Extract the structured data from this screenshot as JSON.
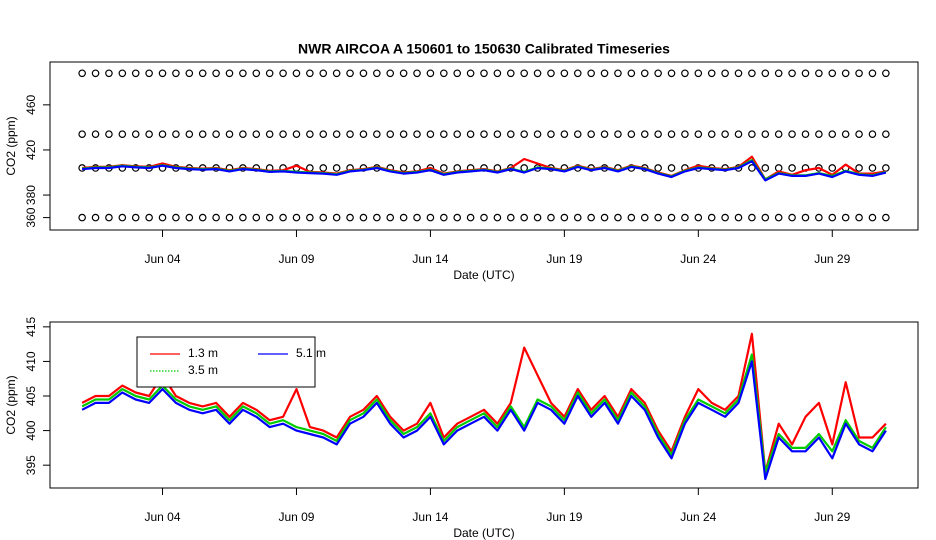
{
  "chart_data": [
    {
      "type": "line",
      "title": "NWR   AIRCOA  A   150601  to  150630   Calibrated Timeseries",
      "x_label": "Date (UTC)",
      "y_label": "CO2 (ppm)",
      "x": [
        1,
        1.5,
        2,
        2.5,
        3,
        3.5,
        4,
        4.5,
        5,
        5.5,
        6,
        6.5,
        7,
        7.5,
        8,
        8.5,
        9,
        9.5,
        10,
        10.5,
        11,
        11.5,
        12,
        12.5,
        13,
        13.5,
        14,
        14.5,
        15,
        15.5,
        16,
        16.5,
        17,
        17.5,
        18,
        18.5,
        19,
        19.5,
        20,
        20.5,
        21,
        21.5,
        22,
        22.5,
        23,
        23.5,
        24,
        24.5,
        25,
        25.5,
        26,
        26.5,
        27,
        27.5,
        28,
        28.5,
        29,
        29.5,
        30,
        30.5,
        31
      ],
      "xlim": [
        -0.2,
        32.2
      ],
      "xticks": [
        {
          "value": 4,
          "label": "Jun 04"
        },
        {
          "value": 9,
          "label": "Jun 09"
        },
        {
          "value": 14,
          "label": "Jun 14"
        },
        {
          "value": 19,
          "label": "Jun 19"
        },
        {
          "value": 24,
          "label": "Jun 24"
        },
        {
          "value": 29,
          "label": "Jun 29"
        }
      ],
      "ylim": [
        349,
        498
      ],
      "yticks": [
        360,
        380,
        420,
        460
      ],
      "series": [
        {
          "color": "#000000",
          "marker": "circle",
          "values": [
            488,
            488,
            488,
            488,
            488,
            488,
            488,
            488,
            488,
            488,
            488,
            488,
            488,
            488,
            488,
            488,
            488,
            488,
            488,
            488,
            488,
            488,
            488,
            488,
            488,
            488,
            488,
            488,
            488,
            488,
            488,
            488,
            488,
            488,
            488,
            488,
            488,
            488,
            488,
            488,
            488,
            488,
            488,
            488,
            488,
            488,
            488,
            488,
            488,
            488,
            488,
            488,
            488,
            488,
            488,
            488,
            488,
            488,
            488,
            488,
            488
          ]
        },
        {
          "color": "#000000",
          "marker": "circle",
          "values": [
            434,
            434,
            434,
            434,
            434,
            434,
            434,
            434,
            434,
            434,
            434,
            434,
            434,
            434,
            434,
            434,
            434,
            434,
            434,
            434,
            434,
            434,
            434,
            434,
            434,
            434,
            434,
            434,
            434,
            434,
            434,
            434,
            434,
            434,
            434,
            434,
            434,
            434,
            434,
            434,
            434,
            434,
            434,
            434,
            434,
            434,
            434,
            434,
            434,
            434,
            434,
            434,
            434,
            434,
            434,
            434,
            434,
            434,
            434,
            434,
            434
          ]
        },
        {
          "color": "#000000",
          "marker": "circle",
          "values": [
            404,
            404,
            404,
            404,
            404,
            404,
            404,
            404,
            404,
            404,
            404,
            404,
            404,
            404,
            404,
            404,
            404,
            404,
            404,
            404,
            404,
            404,
            404,
            404,
            404,
            404,
            404,
            404,
            404,
            404,
            404,
            404,
            404,
            404,
            404,
            404,
            404,
            404,
            404,
            404,
            404,
            404,
            404,
            404,
            404,
            404,
            404,
            404,
            404,
            404,
            404,
            404,
            404,
            404,
            404,
            404,
            404,
            404,
            404,
            404,
            404
          ]
        },
        {
          "color": "#000000",
          "marker": "circle",
          "values": [
            360,
            360,
            360,
            360,
            360,
            360,
            360,
            360,
            360,
            360,
            360,
            360,
            360,
            360,
            360,
            360,
            360,
            360,
            360,
            360,
            360,
            360,
            360,
            360,
            360,
            360,
            360,
            360,
            360,
            360,
            360,
            360,
            360,
            360,
            360,
            360,
            360,
            360,
            360,
            360,
            360,
            360,
            360,
            360,
            360,
            360,
            360,
            360,
            360,
            360,
            360,
            360,
            360,
            360,
            360,
            360,
            360,
            360,
            360,
            360,
            360
          ]
        },
        {
          "color": "#ff0000",
          "values": [
            404,
            405,
            405,
            406.5,
            405.5,
            405,
            408,
            405,
            404,
            403.5,
            404,
            402,
            404,
            403,
            401.5,
            402,
            406,
            400.5,
            400,
            399,
            402,
            403,
            405,
            402,
            400,
            401,
            404,
            399,
            401,
            402,
            403,
            401,
            404,
            412,
            408,
            404,
            402,
            406,
            403,
            405,
            402,
            406,
            404,
            400,
            397,
            402,
            406,
            404,
            403,
            405,
            414,
            394,
            401,
            398,
            402,
            404,
            398,
            407,
            399,
            399,
            401
          ]
        },
        {
          "color": "#00cc00",
          "values": [
            403.5,
            404.5,
            404.5,
            406,
            405,
            404.5,
            406.5,
            404.5,
            403.5,
            403,
            403.5,
            401.5,
            403.5,
            402.5,
            401,
            401.5,
            400.5,
            400,
            399.5,
            398.5,
            401.5,
            402.5,
            404.5,
            401.5,
            399.5,
            400.5,
            402.5,
            398.5,
            400.5,
            401.5,
            402.5,
            400.5,
            403.5,
            400.5,
            404.5,
            403.5,
            401.5,
            405.5,
            402.5,
            404.5,
            401.5,
            405.5,
            403.5,
            399.5,
            396.5,
            401.5,
            404.5,
            403.5,
            402.5,
            404.5,
            411,
            394,
            399.5,
            397.5,
            397.5,
            399.5,
            397,
            401.5,
            398.5,
            397.5,
            400.5
          ]
        },
        {
          "color": "#0000ff",
          "values": [
            403,
            404,
            404,
            405.5,
            404.5,
            404,
            406,
            404,
            403,
            402.5,
            403,
            401,
            403,
            402,
            400.5,
            401,
            400,
            399.5,
            399,
            398,
            401,
            402,
            404,
            401,
            399,
            400,
            402,
            398,
            400,
            401,
            402,
            400,
            403,
            400,
            404,
            403,
            401,
            405,
            402,
            404,
            401,
            405,
            403,
            399,
            396,
            401,
            404,
            403,
            402,
            404,
            410,
            393,
            399,
            397,
            397,
            399,
            396,
            401,
            398,
            397,
            400
          ]
        }
      ]
    },
    {
      "type": "line",
      "x_label": "Date (UTC)",
      "y_label": "CO2 (ppm)",
      "x": [
        1,
        1.5,
        2,
        2.5,
        3,
        3.5,
        4,
        4.5,
        5,
        5.5,
        6,
        6.5,
        7,
        7.5,
        8,
        8.5,
        9,
        9.5,
        10,
        10.5,
        11,
        11.5,
        12,
        12.5,
        13,
        13.5,
        14,
        14.5,
        15,
        15.5,
        16,
        16.5,
        17,
        17.5,
        18,
        18.5,
        19,
        19.5,
        20,
        20.5,
        21,
        21.5,
        22,
        22.5,
        23,
        23.5,
        24,
        24.5,
        25,
        25.5,
        26,
        26.5,
        27,
        27.5,
        28,
        28.5,
        29,
        29.5,
        30,
        30.5,
        31
      ],
      "xlim": [
        -0.2,
        32.2
      ],
      "xticks": [
        {
          "value": 4,
          "label": "Jun 04"
        },
        {
          "value": 9,
          "label": "Jun 09"
        },
        {
          "value": 14,
          "label": "Jun 14"
        },
        {
          "value": 19,
          "label": "Jun 19"
        },
        {
          "value": 24,
          "label": "Jun 24"
        },
        {
          "value": 29,
          "label": "Jun 29"
        }
      ],
      "ylim": [
        391.7,
        415.7
      ],
      "yticks": [
        395,
        400,
        405,
        410,
        415
      ],
      "legend": "top-left",
      "series": [
        {
          "name": "1.3 m",
          "color": "#ff0000",
          "linestyle": "solid",
          "values": [
            404,
            405,
            405,
            406.5,
            405.5,
            405,
            408,
            405,
            404,
            403.5,
            404,
            402,
            404,
            403,
            401.5,
            402,
            406,
            400.5,
            400,
            399,
            402,
            403,
            405,
            402,
            400,
            401,
            404,
            399,
            401,
            402,
            403,
            401,
            404,
            412,
            408,
            404,
            402,
            406,
            403,
            405,
            402,
            406,
            404,
            400,
            397,
            402,
            406,
            404,
            403,
            405,
            414,
            394,
            401,
            398,
            402,
            404,
            398,
            407,
            399,
            399,
            401
          ]
        },
        {
          "name": "3.5 m",
          "color": "#00cc00",
          "linestyle": "dotted",
          "values": [
            403.5,
            404.5,
            404.5,
            406,
            405,
            404.5,
            406.5,
            404.5,
            403.5,
            403,
            403.5,
            401.5,
            403.5,
            402.5,
            401,
            401.5,
            400.5,
            400,
            399.5,
            398.5,
            401.5,
            402.5,
            404.5,
            401.5,
            399.5,
            400.5,
            402.5,
            398.5,
            400.5,
            401.5,
            402.5,
            400.5,
            403.5,
            400.5,
            404.5,
            403.5,
            401.5,
            405.5,
            402.5,
            404.5,
            401.5,
            405.5,
            403.5,
            399.5,
            396.5,
            401.5,
            404.5,
            403.5,
            402.5,
            404.5,
            411,
            394,
            399.5,
            397.5,
            397.5,
            399.5,
            397,
            401.5,
            398.5,
            397.5,
            400.5
          ]
        },
        {
          "name": "5.1 m",
          "color": "#0000ff",
          "linestyle": "solid",
          "values": [
            403,
            404,
            404,
            405.5,
            404.5,
            404,
            406,
            404,
            403,
            402.5,
            403,
            401,
            403,
            402,
            400.5,
            401,
            400,
            399.5,
            399,
            398,
            401,
            402,
            404,
            401,
            399,
            400,
            402,
            398,
            400,
            401,
            402,
            400,
            403,
            400,
            404,
            403,
            401,
            405,
            402,
            404,
            401,
            405,
            403,
            399,
            396,
            401,
            404,
            403,
            402,
            404,
            410,
            393,
            399,
            397,
            397,
            399,
            396,
            401,
            398,
            397,
            400
          ]
        }
      ]
    }
  ]
}
